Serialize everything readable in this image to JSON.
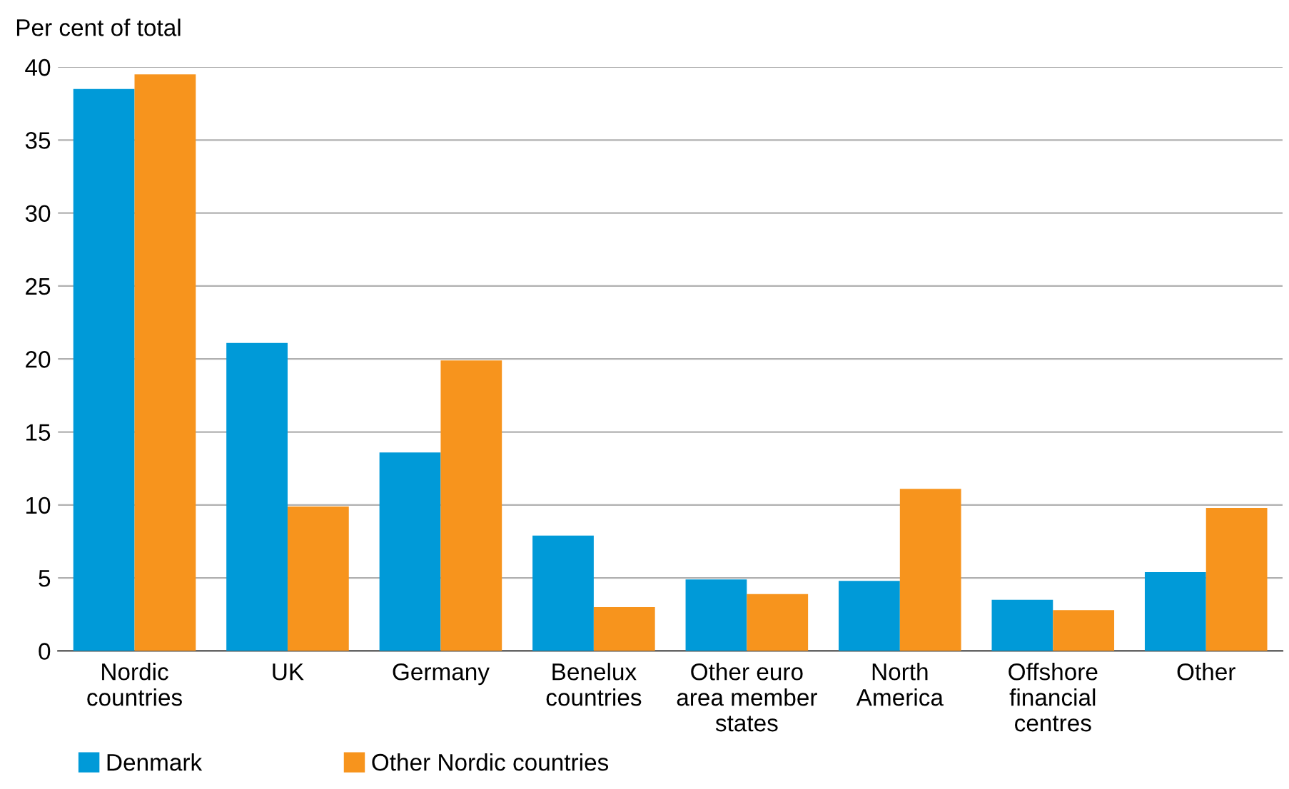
{
  "chart_data": {
    "type": "bar",
    "ylabel": "Per cent of total",
    "categories": [
      "Nordic\ncountries",
      "UK",
      "Germany",
      "Benelux\ncountries",
      "Other euro\narea member\nstates",
      "North\nAmerica",
      "Offshore\nfinancial\ncentres",
      "Other"
    ],
    "series": [
      {
        "name": "Denmark",
        "color": "#009ad8",
        "values": [
          38.5,
          21.1,
          13.6,
          7.9,
          4.9,
          4.8,
          3.5,
          5.4
        ]
      },
      {
        "name": "Other Nordic countries",
        "color": "#f7941d",
        "values": [
          39.5,
          9.9,
          19.9,
          3.0,
          3.9,
          11.1,
          2.8,
          9.8
        ]
      }
    ],
    "ylim": [
      0,
      40
    ],
    "yticks": [
      0,
      5,
      10,
      15,
      20,
      25,
      30,
      35,
      40
    ],
    "grid": "y",
    "legend": "bottom left"
  }
}
